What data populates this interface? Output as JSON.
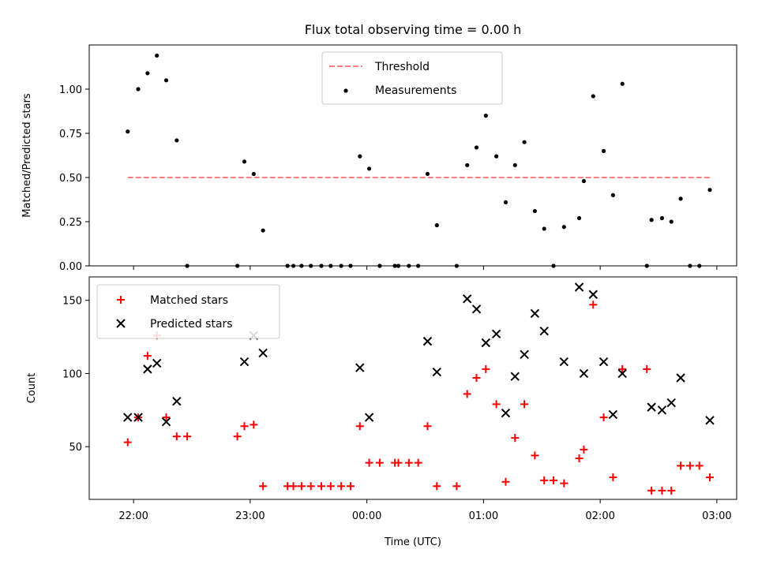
{
  "figure": {
    "title": "Flux total observing time = 0.00 h"
  },
  "chart_data": [
    {
      "type": "scatter",
      "ylabel": "Matched/Predicted stars",
      "ylim": [
        0,
        1.25
      ],
      "yticks": [
        "0.00",
        "0.25",
        "0.50",
        "0.75",
        "1.00"
      ],
      "ytick_values": [
        0,
        0.25,
        0.5,
        0.75,
        1.0
      ],
      "xlim_hours": [
        21.62,
        27.17
      ],
      "legend_position": "upper-center",
      "threshold": {
        "name": "Threshold",
        "value": 0.5,
        "x_start": 21.95,
        "x_end": 26.95,
        "color": "#ff7f7f"
      },
      "series": [
        {
          "name": "Measurements",
          "color": "#000000",
          "points": [
            [
              21.95,
              0.76
            ],
            [
              22.04,
              1.0
            ],
            [
              22.12,
              1.09
            ],
            [
              22.2,
              1.19
            ],
            [
              22.28,
              1.05
            ],
            [
              22.37,
              0.71
            ],
            [
              22.46,
              0.0
            ],
            [
              22.89,
              0.0
            ],
            [
              22.95,
              0.59
            ],
            [
              23.03,
              0.52
            ],
            [
              23.11,
              0.2
            ],
            [
              23.32,
              0.0
            ],
            [
              23.37,
              0.0
            ],
            [
              23.44,
              0.0
            ],
            [
              23.52,
              0.0
            ],
            [
              23.61,
              0.0
            ],
            [
              23.69,
              0.0
            ],
            [
              23.78,
              0.0
            ],
            [
              23.86,
              0.0
            ],
            [
              23.94,
              0.62
            ],
            [
              24.02,
              0.55
            ],
            [
              24.11,
              0.0
            ],
            [
              24.24,
              0.0
            ],
            [
              24.27,
              0.0
            ],
            [
              24.36,
              0.0
            ],
            [
              24.44,
              0.0
            ],
            [
              24.52,
              0.52
            ],
            [
              24.6,
              0.23
            ],
            [
              24.77,
              0.0
            ],
            [
              24.86,
              0.57
            ],
            [
              24.94,
              0.67
            ],
            [
              25.02,
              0.85
            ],
            [
              25.11,
              0.62
            ],
            [
              25.19,
              0.36
            ],
            [
              25.27,
              0.57
            ],
            [
              25.35,
              0.7
            ],
            [
              25.44,
              0.31
            ],
            [
              25.52,
              0.21
            ],
            [
              25.6,
              0.0
            ],
            [
              25.69,
              0.22
            ],
            [
              25.82,
              0.27
            ],
            [
              25.86,
              0.48
            ],
            [
              25.94,
              0.96
            ],
            [
              26.03,
              0.65
            ],
            [
              26.11,
              0.4
            ],
            [
              26.19,
              1.03
            ],
            [
              26.4,
              0.0
            ],
            [
              26.44,
              0.26
            ],
            [
              26.53,
              0.27
            ],
            [
              26.61,
              0.25
            ],
            [
              26.69,
              0.38
            ],
            [
              26.77,
              0.0
            ],
            [
              26.85,
              0.0
            ],
            [
              26.94,
              0.43
            ]
          ]
        }
      ]
    },
    {
      "type": "scatter",
      "xlabel": "Time (UTC)",
      "ylabel": "Count",
      "ylim": [
        14,
        166
      ],
      "yticks": [
        "50",
        "100",
        "150"
      ],
      "ytick_values": [
        50,
        100,
        150
      ],
      "xticks": [
        "22:00",
        "23:00",
        "00:00",
        "01:00",
        "02:00",
        "03:00"
      ],
      "xtick_hours": [
        22,
        23,
        24,
        25,
        26,
        27
      ],
      "xlim_hours": [
        21.62,
        27.17
      ],
      "legend_position": "upper-left",
      "series": [
        {
          "name": "Matched stars",
          "marker": "plus",
          "color": "#ff0000",
          "points": [
            [
              21.95,
              53
            ],
            [
              22.04,
              70
            ],
            [
              22.12,
              112
            ],
            [
              22.2,
              126
            ],
            [
              22.28,
              70
            ],
            [
              22.37,
              57
            ],
            [
              22.46,
              57
            ],
            [
              22.89,
              57
            ],
            [
              22.95,
              64
            ],
            [
              23.03,
              65
            ],
            [
              23.11,
              23
            ],
            [
              23.32,
              23
            ],
            [
              23.37,
              23
            ],
            [
              23.44,
              23
            ],
            [
              23.52,
              23
            ],
            [
              23.61,
              23
            ],
            [
              23.69,
              23
            ],
            [
              23.78,
              23
            ],
            [
              23.86,
              23
            ],
            [
              23.94,
              64
            ],
            [
              24.02,
              39
            ],
            [
              24.11,
              39
            ],
            [
              24.24,
              39
            ],
            [
              24.27,
              39
            ],
            [
              24.36,
              39
            ],
            [
              24.44,
              39
            ],
            [
              24.52,
              64
            ],
            [
              24.6,
              23
            ],
            [
              24.77,
              23
            ],
            [
              24.86,
              86
            ],
            [
              24.94,
              97
            ],
            [
              25.02,
              103
            ],
            [
              25.11,
              79
            ],
            [
              25.19,
              26
            ],
            [
              25.27,
              56
            ],
            [
              25.35,
              79
            ],
            [
              25.44,
              44
            ],
            [
              25.52,
              27
            ],
            [
              25.6,
              27
            ],
            [
              25.69,
              25
            ],
            [
              25.82,
              42
            ],
            [
              25.86,
              48
            ],
            [
              25.94,
              147
            ],
            [
              26.03,
              70
            ],
            [
              26.11,
              29
            ],
            [
              26.19,
              103
            ],
            [
              26.4,
              103
            ],
            [
              26.44,
              20
            ],
            [
              26.53,
              20
            ],
            [
              26.61,
              20
            ],
            [
              26.69,
              37
            ],
            [
              26.77,
              37
            ],
            [
              26.85,
              37
            ],
            [
              26.94,
              29
            ]
          ]
        },
        {
          "name": "Predicted stars",
          "marker": "x",
          "color": "#000000",
          "points": [
            [
              21.95,
              70
            ],
            [
              22.04,
              70
            ],
            [
              22.12,
              103
            ],
            [
              22.2,
              107
            ],
            [
              22.28,
              67
            ],
            [
              22.37,
              81
            ],
            [
              22.95,
              108
            ],
            [
              23.03,
              126
            ],
            [
              23.11,
              114
            ],
            [
              23.94,
              104
            ],
            [
              24.02,
              70
            ],
            [
              24.52,
              122
            ],
            [
              24.6,
              101
            ],
            [
              24.86,
              151
            ],
            [
              24.94,
              144
            ],
            [
              25.02,
              121
            ],
            [
              25.11,
              127
            ],
            [
              25.19,
              73
            ],
            [
              25.27,
              98
            ],
            [
              25.35,
              113
            ],
            [
              25.44,
              141
            ],
            [
              25.52,
              129
            ],
            [
              25.69,
              108
            ],
            [
              25.86,
              100
            ],
            [
              25.82,
              159
            ],
            [
              25.94,
              154
            ],
            [
              26.03,
              108
            ],
            [
              26.11,
              72
            ],
            [
              26.19,
              100
            ],
            [
              26.44,
              77
            ],
            [
              26.53,
              75
            ],
            [
              26.61,
              80
            ],
            [
              26.69,
              97
            ],
            [
              26.94,
              68
            ]
          ]
        }
      ]
    }
  ]
}
